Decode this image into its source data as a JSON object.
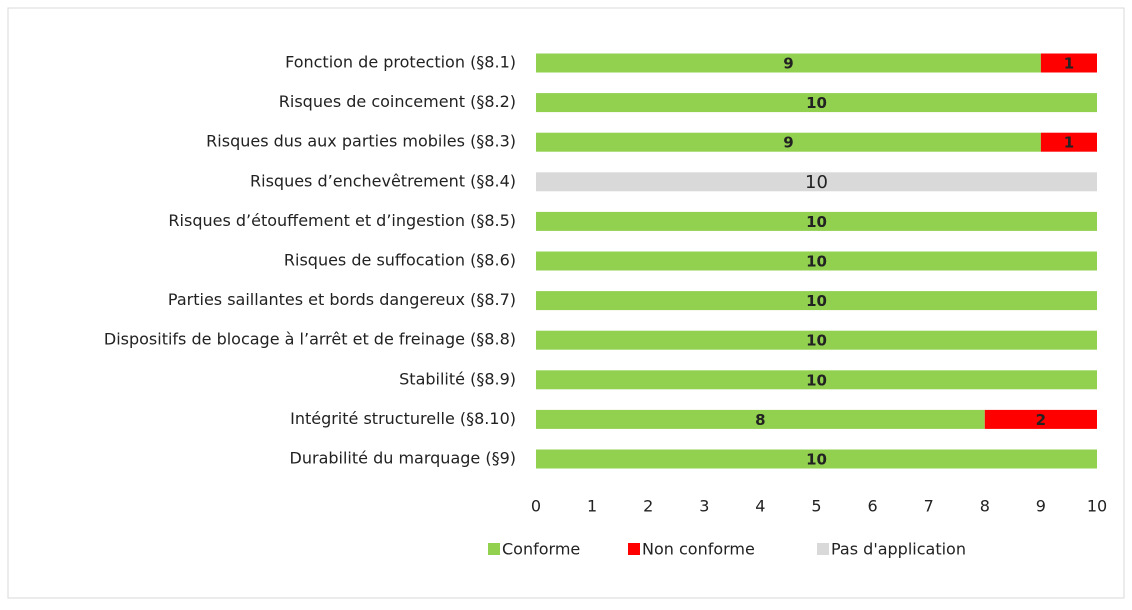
{
  "chart_data": {
    "type": "stacked_barh",
    "categories": [
      "Fonction de protection (§8.1)",
      "Risques de coincement (§8.2)",
      "Risques dus aux parties mobiles (§8.3)",
      "Risques d’enchevêtrement  (§8.4)",
      "Risques d’étouffement et d’ingestion (§8.5)",
      "Risques de suffocation (§8.6)",
      "Parties saillantes et bords dangereux (§8.7)",
      "Dispositifs de blocage à l’arrêt et de freinage (§8.8)",
      "Stabilité (§8.9)",
      "Intégrité structurelle (§8.10)",
      "Durabilité du marquage (§9)"
    ],
    "series": [
      {
        "name": "Conforme",
        "color": "#92d050",
        "values": [
          9,
          10,
          9,
          null,
          10,
          10,
          10,
          10,
          10,
          8,
          10
        ]
      },
      {
        "name": "Non conforme",
        "color": "#ff0000",
        "values": [
          1,
          null,
          1,
          null,
          null,
          null,
          null,
          null,
          null,
          2,
          null
        ]
      },
      {
        "name": "Pas d'application",
        "color": "#d9d9d9",
        "values": [
          null,
          null,
          null,
          10,
          null,
          null,
          null,
          null,
          null,
          null,
          null
        ]
      }
    ],
    "xlim": [
      0,
      10
    ],
    "xticks": [
      0,
      1,
      2,
      3,
      4,
      5,
      6,
      7,
      8,
      9,
      10
    ],
    "legend": "bottom"
  }
}
